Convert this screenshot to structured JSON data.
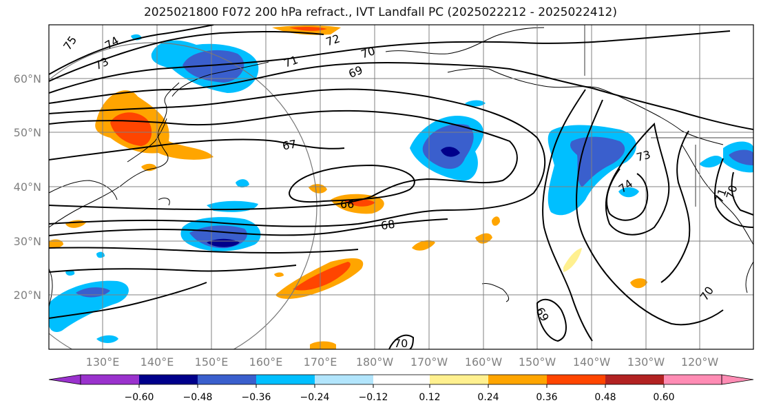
{
  "title": "2025021800 F072 200 hPa refract., IVT Landfall PC (2025022212 - 2025022412)",
  "map": {
    "lat_labels": [
      "60°N",
      "50°N",
      "40°N",
      "30°N",
      "20°N"
    ],
    "lon_labels": [
      "130°E",
      "140°E",
      "150°E",
      "160°E",
      "170°E",
      "180°W",
      "170°W",
      "160°W",
      "150°W",
      "140°W",
      "130°W",
      "120°W"
    ],
    "contour_labels": [
      "75",
      "74",
      "73",
      "72",
      "71",
      "70",
      "69",
      "67",
      "66",
      "68",
      "73",
      "74",
      "71",
      "70",
      "70",
      "69",
      "70"
    ]
  },
  "colorbar": {
    "colors": [
      "#9a32cd",
      "#00008b",
      "#3a5fcd",
      "#00bfff",
      "#b2e5fc",
      "#ffffff",
      "#fff08f",
      "#ffa500",
      "#ff4500",
      "#b22222",
      "#ff8cb4"
    ],
    "ticks": [
      "−0.60",
      "−0.48",
      "−0.36",
      "−0.24",
      "−0.12",
      "0.12",
      "0.24",
      "0.36",
      "0.48",
      "0.60"
    ]
  }
}
